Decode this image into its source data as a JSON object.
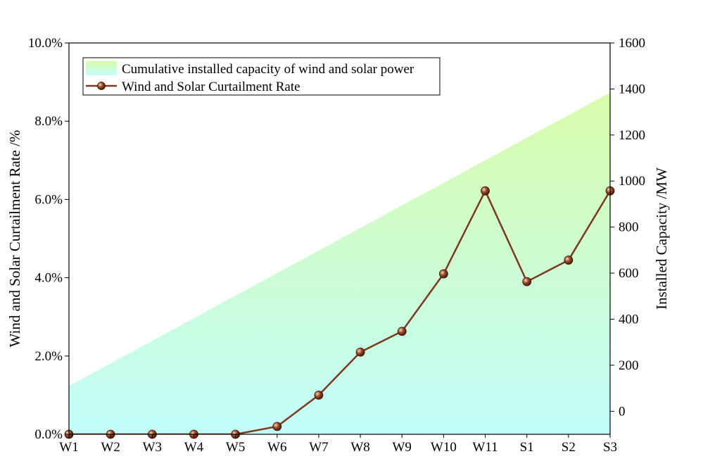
{
  "chart_data": {
    "type": "line",
    "categories": [
      "W1",
      "W2",
      "W3",
      "W4",
      "W5",
      "W6",
      "W7",
      "W8",
      "W9",
      "W10",
      "W11",
      "S1",
      "S2",
      "S3"
    ],
    "series": [
      {
        "name": "Cumulative installed capacity of wind and solar power",
        "type": "area",
        "axis": "right",
        "values": [
          110,
          208,
          306,
          404,
          502,
          600,
          698,
          796,
          894,
          992,
          1090,
          1188,
          1286,
          1385
        ]
      },
      {
        "name": "Wind and Solar Curtailment Rate",
        "type": "line",
        "axis": "left",
        "values": [
          0.0,
          0.0,
          0.0,
          0.0,
          0.0,
          0.2,
          1.0,
          2.1,
          2.63,
          4.1,
          6.22,
          3.9,
          4.45,
          6.22
        ]
      }
    ],
    "left_axis": {
      "title": "Wind and Solar Curtailment Rate /%",
      "ylim": [
        0,
        10
      ],
      "ticks": [
        0,
        2,
        4,
        6,
        8,
        10
      ],
      "tick_labels": [
        "0.0%",
        "2.0%",
        "4.0%",
        "6.0%",
        "8.0%",
        "10.0%"
      ]
    },
    "right_axis": {
      "title": "Installed Capacity /MW",
      "ylim": [
        -100,
        1600
      ],
      "ticks": [
        0,
        200,
        400,
        600,
        800,
        1000,
        1200,
        1400,
        1600
      ],
      "tick_labels": [
        "0",
        "200",
        "400",
        "600",
        "800",
        "1000",
        "1200",
        "1400",
        "1600"
      ]
    },
    "legend_position": "top-left",
    "grid": false,
    "colors": {
      "area_top": "#d8fcaa",
      "area_bottom": "#c2fdfb",
      "line": "#7a3a1f",
      "marker": "#7a3a1f"
    }
  }
}
